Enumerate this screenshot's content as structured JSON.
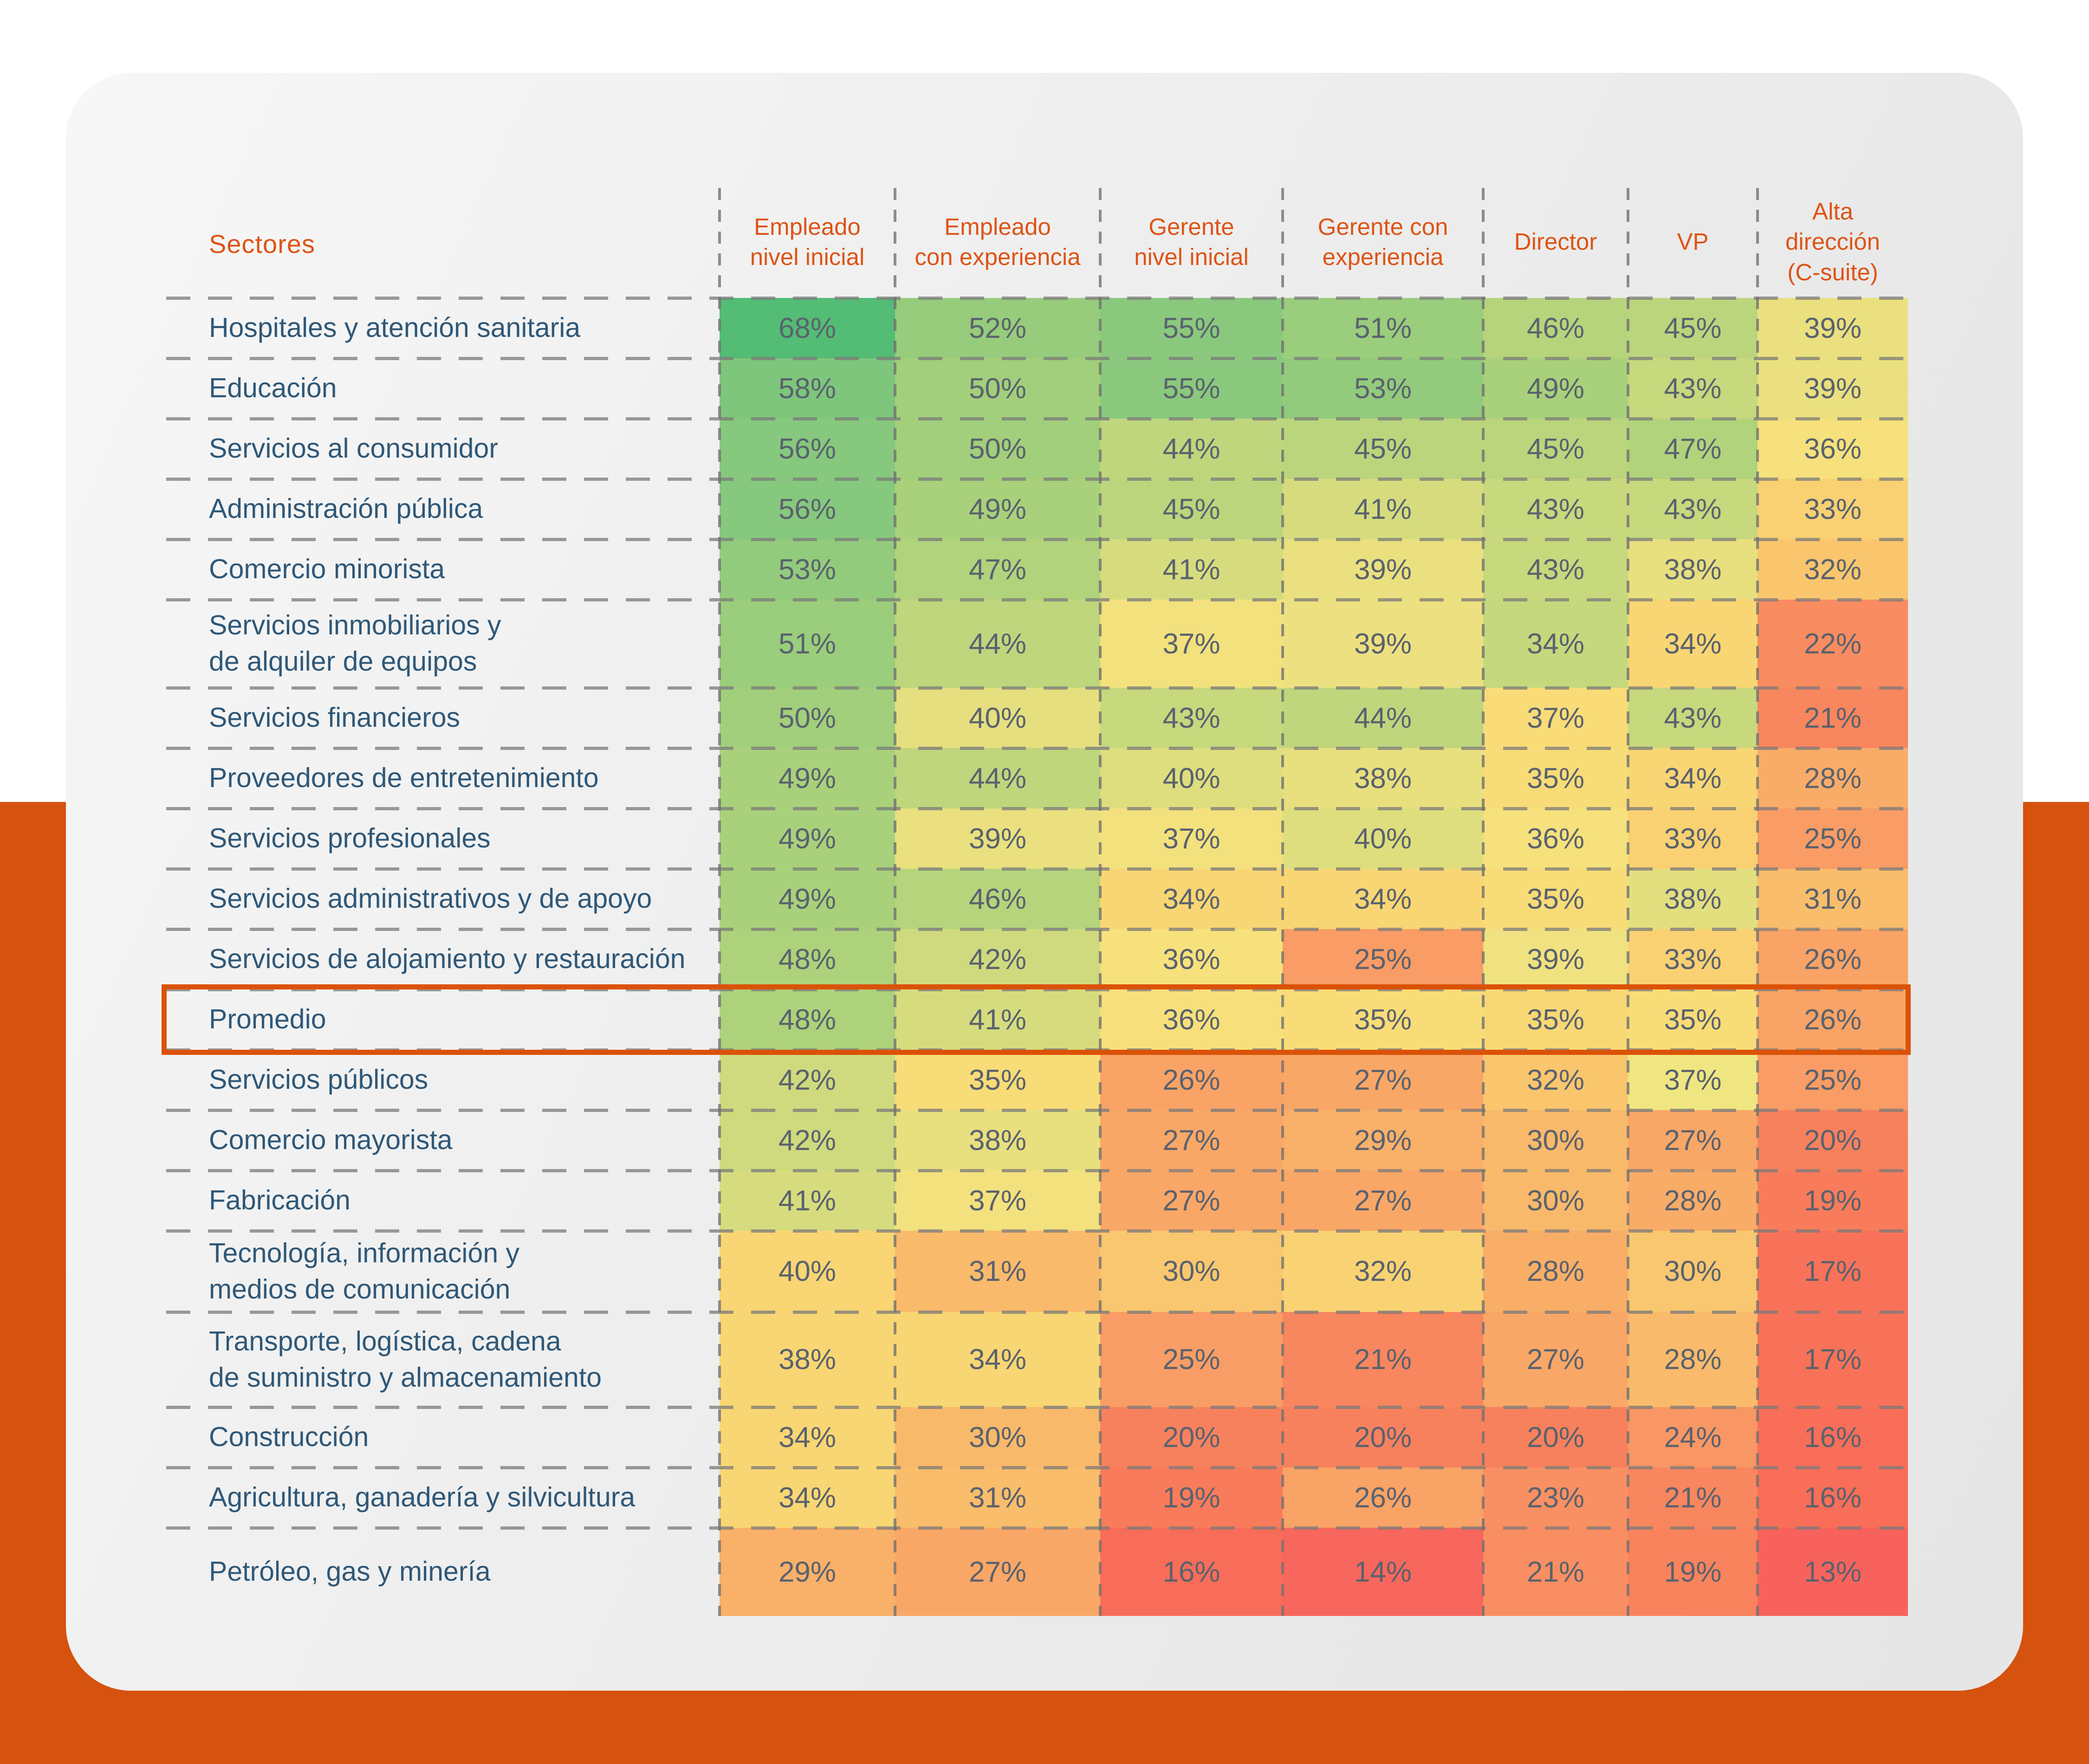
{
  "page": {
    "background_color": "#FFFFFF",
    "bottom_band_color": "#D5520F",
    "card_color": "#EDEDED",
    "accent_orange": "#DD5415",
    "label_navy": "#2F5878",
    "value_gray": "#5A626E"
  },
  "table": {
    "corner_header": "Sectores",
    "column_headers": [
      "Empleado\nnivel inicial",
      "Empleado\ncon experiencia",
      "Gerente\nnivel inicial",
      "Gerente con\nexperiencia",
      "Director",
      "VP",
      "Alta\ndirección\n(C-suite)"
    ],
    "highlight_border_color": "#DB5207",
    "rows": [
      {
        "label": "Hospitales y atención sanitaria",
        "highlight": false,
        "colors": [
          "#53BC75",
          "#97CC7C",
          "#8AC97D",
          "#9ACD7C",
          "#B6D47C",
          "#BBD57D",
          "#EAE07F"
        ]
      },
      {
        "label": "Educación",
        "highlight": false,
        "colors": [
          "#7EC67C",
          "#A2CF7B",
          "#8AC97D",
          "#93CB7C",
          "#A9D17B",
          "#C7D87D",
          "#EAE07F"
        ]
      },
      {
        "label": "Servicios al consumidor",
        "highlight": false,
        "colors": [
          "#86C87D",
          "#A2CF7B",
          "#BFD67D",
          "#BBD57D",
          "#BBD57D",
          "#B1D37C",
          "#F6E17C"
        ]
      },
      {
        "label": "Administración pública",
        "highlight": false,
        "colors": [
          "#86C87D",
          "#A9D17B",
          "#BBD57D",
          "#D6DC7E",
          "#C7D87D",
          "#C7D87D",
          "#F9D172"
        ]
      },
      {
        "label": "Comercio minorista",
        "highlight": false,
        "colors": [
          "#93CB7C",
          "#B1D37C",
          "#D6DC7E",
          "#EAE07F",
          "#C7D87D",
          "#E8DF7F",
          "#F9C66E"
        ]
      },
      {
        "label": "Servicios inmobiliarios y\nde alquiler de equipos",
        "highlight": false,
        "colors": [
          "#9ACD7C",
          "#BFD67D",
          "#F3E17D",
          "#EDE080",
          "#C6D87D",
          "#F9D674",
          "#F98C61"
        ]
      },
      {
        "label": "Servicios financieros",
        "highlight": false,
        "colors": [
          "#A2CF7B",
          "#E5DF7F",
          "#C7D87D",
          "#BFD67D",
          "#F9DC78",
          "#C7D87D",
          "#F8865F"
        ]
      },
      {
        "label": "Proveedores de entretenimiento",
        "highlight": false,
        "colors": [
          "#A9D17B",
          "#BFD67D",
          "#DEDE7E",
          "#E8DF7F",
          "#F8DC77",
          "#F9D674",
          "#F9AC68"
        ]
      },
      {
        "label": "Servicios profesionales",
        "highlight": false,
        "colors": [
          "#A9D17B",
          "#EAE07F",
          "#F3E17D",
          "#DEDE7E",
          "#F6E17C",
          "#F9D172",
          "#F99C65"
        ]
      },
      {
        "label": "Servicios administrativos y de apoyo",
        "highlight": false,
        "colors": [
          "#A9D17B",
          "#B6D47C",
          "#F9D674",
          "#F9D674",
          "#F8DC77",
          "#E3DF7F",
          "#F9BD6B"
        ]
      },
      {
        "label": "Servicios de alojamiento y restauración",
        "highlight": false,
        "colors": [
          "#ADD27B",
          "#CFDA7E",
          "#F6E17C",
          "#F99C65",
          "#F0E280",
          "#F9D172",
          "#F9A366"
        ]
      },
      {
        "label": "Promedio",
        "highlight": true,
        "colors": [
          "#ADD27B",
          "#D6DC7E",
          "#F7E07B",
          "#F8DC77",
          "#F8D875",
          "#F8DC77",
          "#F9A366"
        ]
      },
      {
        "label": "Servicios públicos",
        "highlight": false,
        "colors": [
          "#CFDA7E",
          "#F8DC77",
          "#F9A366",
          "#F9A767",
          "#F9C66E",
          "#F0E681",
          "#F99C65"
        ]
      },
      {
        "label": "Comercio mayorista",
        "highlight": false,
        "colors": [
          "#CFDA7E",
          "#E8DF7F",
          "#F9A767",
          "#F9B069",
          "#F9B96A",
          "#F9A767",
          "#F8815D"
        ]
      },
      {
        "label": "Fabricación",
        "highlight": false,
        "colors": [
          "#D6DC7E",
          "#F3E17D",
          "#F9A767",
          "#F9A767",
          "#F9B96A",
          "#F9AC68",
          "#F87C5B"
        ]
      },
      {
        "label": "Tecnología, información y\nmedios de comunicación",
        "highlight": false,
        "colors": [
          "#F9D573",
          "#F9BA6B",
          "#F9C76F",
          "#F9D373",
          "#F9AE68",
          "#F9C76F",
          "#F87259"
        ]
      },
      {
        "label": "Transporte, logística, cadena\nde suministro y almacenamiento",
        "highlight": false,
        "colors": [
          "#F9D674",
          "#F9D674",
          "#F99D66",
          "#F8865F",
          "#F9A767",
          "#F9BB6B",
          "#F87259"
        ]
      },
      {
        "label": "Construcción",
        "highlight": false,
        "colors": [
          "#F9D674",
          "#F9B96A",
          "#F8815D",
          "#F8815D",
          "#F8815D",
          "#F99764",
          "#F86E58"
        ]
      },
      {
        "label": "Agricultura, ganadería y silvicultura",
        "highlight": false,
        "colors": [
          "#F9D674",
          "#F9BD6B",
          "#F87C5B",
          "#F9A366",
          "#F99063",
          "#F8865F",
          "#F86E58"
        ]
      },
      {
        "label": "Petróleo, gas y minería",
        "highlight": false,
        "colors": [
          "#F9B069",
          "#F9A767",
          "#F76D59",
          "#F7675D",
          "#F98E62",
          "#F8835D",
          "#F7635C"
        ]
      }
    ]
  },
  "chart_data": {
    "type": "heatmap",
    "title": "",
    "unit": "%",
    "x_categories": [
      "Empleado nivel inicial",
      "Empleado con experiencia",
      "Gerente nivel inicial",
      "Gerente con experiencia",
      "Director",
      "VP",
      "Alta dirección (C-suite)"
    ],
    "y_categories": [
      "Hospitales y atención sanitaria",
      "Educación",
      "Servicios al consumidor",
      "Administración pública",
      "Comercio minorista",
      "Servicios inmobiliarios y de alquiler de equipos",
      "Servicios financieros",
      "Proveedores de entretenimiento",
      "Servicios profesionales",
      "Servicios administrativos y de apoyo",
      "Servicios de alojamiento y restauración",
      "Promedio",
      "Servicios públicos",
      "Comercio mayorista",
      "Fabricación",
      "Tecnología, información y medios de comunicación",
      "Transporte, logística, cadena de suministro y almacenamiento",
      "Construcción",
      "Agricultura, ganadería y silvicultura",
      "Petróleo, gas y minería"
    ],
    "values": [
      [
        68,
        52,
        55,
        51,
        46,
        45,
        39
      ],
      [
        58,
        50,
        55,
        53,
        49,
        43,
        39
      ],
      [
        56,
        50,
        44,
        45,
        45,
        47,
        36
      ],
      [
        56,
        49,
        45,
        41,
        43,
        43,
        33
      ],
      [
        53,
        47,
        41,
        39,
        43,
        38,
        32
      ],
      [
        51,
        44,
        37,
        39,
        34,
        34,
        22
      ],
      [
        50,
        40,
        43,
        44,
        37,
        43,
        21
      ],
      [
        49,
        44,
        40,
        38,
        35,
        34,
        28
      ],
      [
        49,
        39,
        37,
        40,
        36,
        33,
        25
      ],
      [
        49,
        46,
        34,
        34,
        35,
        38,
        31
      ],
      [
        48,
        42,
        36,
        25,
        39,
        33,
        26
      ],
      [
        48,
        41,
        36,
        35,
        35,
        35,
        26
      ],
      [
        42,
        35,
        26,
        27,
        32,
        37,
        25
      ],
      [
        42,
        38,
        27,
        29,
        30,
        27,
        20
      ],
      [
        41,
        37,
        27,
        27,
        30,
        28,
        19
      ],
      [
        40,
        31,
        30,
        32,
        28,
        30,
        17
      ],
      [
        38,
        34,
        25,
        21,
        27,
        28,
        17
      ],
      [
        34,
        30,
        20,
        20,
        20,
        24,
        16
      ],
      [
        34,
        31,
        19,
        26,
        23,
        21,
        16
      ],
      [
        29,
        27,
        16,
        14,
        21,
        19,
        13
      ]
    ],
    "legend": "none",
    "color_scale": {
      "high": "#53BC75",
      "mid": "#F6E17C",
      "low": "#F7635C"
    }
  }
}
